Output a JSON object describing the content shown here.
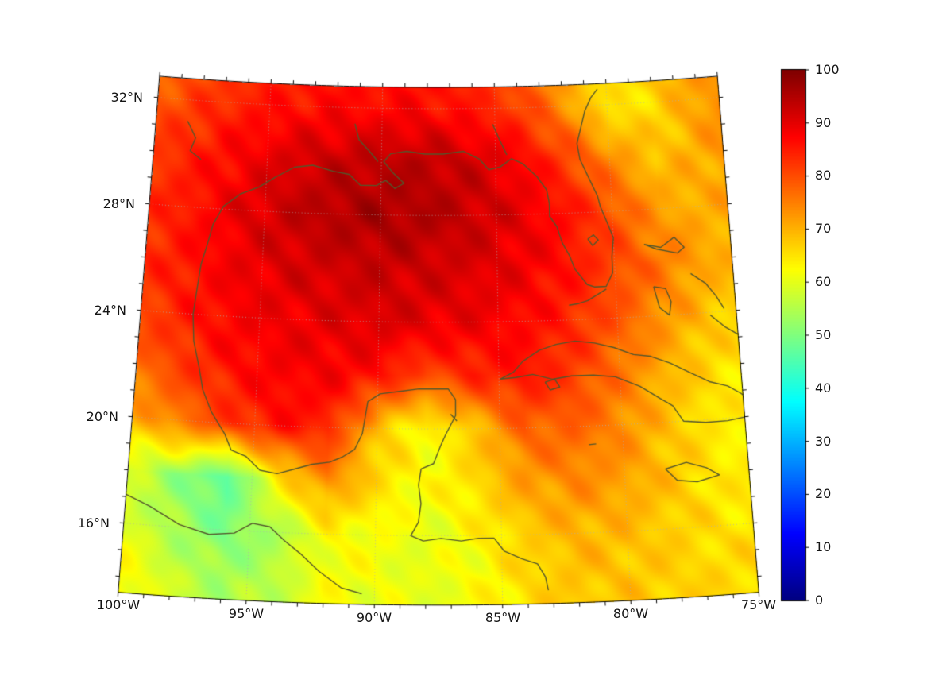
{
  "chart_data": {
    "type": "heatmap",
    "x_tick_lons": [
      -100,
      -95,
      -90,
      -85,
      -80,
      -75
    ],
    "x_tick_labels": [
      "100°W",
      "95°W",
      "90°W",
      "85°W",
      "80°W",
      "75°W"
    ],
    "y_tick_lats": [
      32,
      28,
      24,
      20,
      16
    ],
    "y_tick_labels": [
      "32°N",
      "28°N",
      "24°N",
      "20°N",
      "16°N"
    ],
    "lon_range": [
      -100,
      -75
    ],
    "lat_range": [
      13.4,
      32.8
    ],
    "minor_tick_step_deg": 1,
    "colorbar": {
      "min": 0,
      "max": 100,
      "colormap": "jet",
      "ticks": [
        0,
        10,
        20,
        30,
        40,
        50,
        60,
        70,
        80,
        90,
        100
      ],
      "tick_labels": [
        "0",
        "10",
        "20",
        "30",
        "40",
        "50",
        "60",
        "70",
        "80",
        "90",
        "100"
      ]
    },
    "colors": {
      "coastline": "#54562c",
      "gridline": "#b0b0b0",
      "border": "#000000",
      "background": "#ffffff"
    },
    "grid": {
      "lons": [
        -100,
        -98,
        -96,
        -94,
        -92,
        -90,
        -88,
        -86,
        -84,
        -82,
        -80,
        -78,
        -76,
        -74
      ],
      "lats": [
        34,
        32,
        30,
        28,
        26,
        24,
        22,
        20,
        18,
        16,
        14
      ],
      "values": [
        [
          76,
          79,
          82,
          84,
          85,
          85,
          85,
          83,
          78,
          70,
          66,
          70,
          74,
          76
        ],
        [
          79,
          82,
          85,
          86,
          87,
          87,
          87,
          85,
          82,
          74,
          64,
          66,
          72,
          75
        ],
        [
          82,
          85,
          88,
          91,
          93,
          94,
          94,
          92,
          88,
          82,
          74,
          68,
          71,
          74
        ],
        [
          83,
          86,
          90,
          93,
          95,
          96,
          95,
          93,
          90,
          86,
          80,
          72,
          70,
          72
        ],
        [
          83,
          86,
          89,
          91,
          92,
          93,
          92,
          91,
          89,
          86,
          81,
          76,
          71,
          69
        ],
        [
          81,
          85,
          88,
          89,
          90,
          91,
          90,
          89,
          87,
          84,
          79,
          73,
          68,
          66
        ],
        [
          77,
          82,
          86,
          88,
          88,
          86,
          80,
          84,
          86,
          82,
          76,
          70,
          66,
          64
        ],
        [
          70,
          76,
          82,
          86,
          84,
          68,
          62,
          68,
          78,
          78,
          74,
          68,
          64,
          63
        ],
        [
          58,
          52,
          46,
          64,
          74,
          66,
          62,
          66,
          72,
          74,
          72,
          68,
          64,
          64
        ],
        [
          60,
          54,
          50,
          54,
          62,
          62,
          60,
          63,
          67,
          70,
          69,
          67,
          65,
          66
        ],
        [
          64,
          58,
          54,
          56,
          62,
          61,
          60,
          62,
          66,
          68,
          68,
          67,
          66,
          67
        ]
      ]
    },
    "coastlines": [
      [
        [
          -97.6,
          25.9
        ],
        [
          -97.4,
          26.6
        ],
        [
          -97.2,
          27.4
        ],
        [
          -96.8,
          28.1
        ],
        [
          -96.1,
          28.6
        ],
        [
          -95.3,
          28.9
        ],
        [
          -94.6,
          29.3
        ],
        [
          -93.8,
          29.7
        ],
        [
          -93.0,
          29.8
        ],
        [
          -92.1,
          29.6
        ],
        [
          -91.4,
          29.5
        ],
        [
          -90.9,
          29.1
        ],
        [
          -90.2,
          29.1
        ],
        [
          -89.8,
          29.3
        ],
        [
          -89.4,
          29.0
        ],
        [
          -89.0,
          29.2
        ],
        [
          -89.5,
          29.6
        ],
        [
          -89.9,
          30.0
        ],
        [
          -89.6,
          30.3
        ],
        [
          -88.9,
          30.4
        ],
        [
          -88.1,
          30.3
        ],
        [
          -87.3,
          30.3
        ],
        [
          -86.4,
          30.4
        ],
        [
          -85.7,
          30.1
        ],
        [
          -85.3,
          29.7
        ],
        [
          -84.8,
          29.8
        ],
        [
          -84.3,
          30.1
        ],
        [
          -83.8,
          29.9
        ],
        [
          -83.2,
          29.4
        ],
        [
          -82.8,
          28.9
        ],
        [
          -82.7,
          28.4
        ],
        [
          -82.7,
          27.9
        ],
        [
          -82.4,
          27.5
        ],
        [
          -82.2,
          26.9
        ],
        [
          -81.9,
          26.4
        ],
        [
          -81.7,
          25.9
        ],
        [
          -81.2,
          25.3
        ],
        [
          -80.9,
          25.2
        ],
        [
          -80.4,
          25.2
        ],
        [
          -80.1,
          25.7
        ],
        [
          -80.1,
          26.3
        ],
        [
          -80.0,
          27.0
        ],
        [
          -80.2,
          27.5
        ],
        [
          -80.5,
          28.2
        ],
        [
          -80.6,
          28.6
        ],
        [
          -81.0,
          29.4
        ],
        [
          -81.3,
          30.0
        ],
        [
          -81.4,
          30.6
        ],
        [
          -81.2,
          31.2
        ],
        [
          -81.0,
          31.8
        ],
        [
          -80.7,
          32.3
        ],
        [
          -80.4,
          32.6
        ]
      ],
      [
        [
          -97.6,
          25.9
        ],
        [
          -97.7,
          25.0
        ],
        [
          -97.8,
          24.0
        ],
        [
          -97.7,
          23.0
        ],
        [
          -97.4,
          22.0
        ],
        [
          -97.2,
          21.2
        ],
        [
          -96.8,
          20.4
        ],
        [
          -96.2,
          19.6
        ],
        [
          -95.9,
          19.0
        ],
        [
          -95.3,
          18.8
        ],
        [
          -94.7,
          18.3
        ],
        [
          -94.0,
          18.2
        ],
        [
          -93.3,
          18.4
        ],
        [
          -92.6,
          18.6
        ],
        [
          -91.9,
          18.7
        ],
        [
          -91.4,
          18.9
        ],
        [
          -90.9,
          19.2
        ],
        [
          -90.6,
          19.8
        ],
        [
          -90.5,
          20.4
        ],
        [
          -90.4,
          21.0
        ],
        [
          -89.9,
          21.3
        ],
        [
          -89.1,
          21.4
        ],
        [
          -88.3,
          21.5
        ],
        [
          -87.7,
          21.5
        ],
        [
          -87.1,
          21.5
        ],
        [
          -86.8,
          21.1
        ],
        [
          -86.8,
          20.5
        ],
        [
          -87.2,
          19.8
        ],
        [
          -87.4,
          19.4
        ],
        [
          -87.7,
          18.7
        ],
        [
          -88.2,
          18.5
        ],
        [
          -88.3,
          17.9
        ],
        [
          -88.2,
          17.2
        ],
        [
          -88.3,
          16.5
        ],
        [
          -88.6,
          16.0
        ],
        [
          -88.1,
          15.8
        ],
        [
          -87.4,
          15.9
        ],
        [
          -86.6,
          15.8
        ],
        [
          -85.9,
          15.9
        ],
        [
          -85.3,
          15.9
        ],
        [
          -84.9,
          15.4
        ],
        [
          -84.2,
          15.1
        ],
        [
          -83.6,
          14.9
        ],
        [
          -83.3,
          14.4
        ],
        [
          -83.2,
          13.9
        ]
      ],
      [
        [
          -100.3,
          17.2
        ],
        [
          -99.0,
          16.7
        ],
        [
          -97.8,
          16.1
        ],
        [
          -96.6,
          15.8
        ],
        [
          -95.6,
          15.9
        ],
        [
          -94.9,
          16.3
        ],
        [
          -94.2,
          16.2
        ],
        [
          -93.6,
          15.7
        ],
        [
          -92.9,
          15.2
        ],
        [
          -92.2,
          14.6
        ],
        [
          -91.3,
          14.0
        ],
        [
          -90.5,
          13.8
        ]
      ],
      [
        [
          -84.95,
          21.85
        ],
        [
          -84.4,
          22.1
        ],
        [
          -84.0,
          22.5
        ],
        [
          -83.3,
          22.9
        ],
        [
          -82.6,
          23.1
        ],
        [
          -81.8,
          23.2
        ],
        [
          -81.0,
          23.1
        ],
        [
          -80.2,
          22.9
        ],
        [
          -79.4,
          22.6
        ],
        [
          -78.7,
          22.5
        ],
        [
          -77.9,
          22.2
        ],
        [
          -77.1,
          21.8
        ],
        [
          -76.3,
          21.4
        ],
        [
          -75.6,
          21.2
        ],
        [
          -75.1,
          20.9
        ],
        [
          -74.3,
          20.3
        ],
        [
          -74.9,
          20.0
        ],
        [
          -75.7,
          19.9
        ],
        [
          -76.6,
          19.9
        ],
        [
          -77.5,
          20.0
        ],
        [
          -77.9,
          20.6
        ],
        [
          -78.4,
          20.9
        ],
        [
          -79.2,
          21.4
        ],
        [
          -80.2,
          21.8
        ],
        [
          -81.1,
          21.9
        ],
        [
          -82.0,
          21.9
        ],
        [
          -82.8,
          21.8
        ],
        [
          -83.6,
          22.0
        ],
        [
          -84.3,
          21.9
        ],
        [
          -84.95,
          21.85
        ]
      ],
      [
        [
          -83.1,
          21.7
        ],
        [
          -82.7,
          21.8
        ],
        [
          -82.5,
          21.5
        ],
        [
          -82.9,
          21.4
        ],
        [
          -83.1,
          21.7
        ]
      ],
      [
        [
          -78.35,
          18.25
        ],
        [
          -77.5,
          18.45
        ],
        [
          -76.7,
          18.2
        ],
        [
          -76.2,
          17.9
        ],
        [
          -77.1,
          17.7
        ],
        [
          -77.9,
          17.8
        ],
        [
          -78.35,
          18.25
        ]
      ],
      [
        [
          -74.0,
          19.9
        ],
        [
          -74.5,
          19.75
        ],
        [
          -74.3,
          19.3
        ],
        [
          -74.0,
          19.1
        ]
      ],
      [
        [
          -74.0,
          18.35
        ],
        [
          -74.45,
          18.4
        ],
        [
          -74.0,
          18.65
        ]
      ],
      [
        [
          -78.7,
          26.7
        ],
        [
          -78.0,
          26.55
        ],
        [
          -77.4,
          26.9
        ],
        [
          -77.0,
          26.5
        ],
        [
          -77.3,
          26.3
        ],
        [
          -78.2,
          26.5
        ],
        [
          -78.7,
          26.7
        ]
      ],
      [
        [
          -78.4,
          25.1
        ],
        [
          -77.9,
          25.0
        ],
        [
          -77.7,
          24.5
        ],
        [
          -77.8,
          24.0
        ],
        [
          -78.2,
          24.3
        ],
        [
          -78.4,
          25.1
        ]
      ],
      [
        [
          -76.8,
          25.5
        ],
        [
          -76.2,
          25.1
        ],
        [
          -75.8,
          24.6
        ],
        [
          -75.5,
          24.1
        ]
      ],
      [
        [
          -76.1,
          23.9
        ],
        [
          -75.5,
          23.4
        ],
        [
          -75.0,
          23.1
        ]
      ],
      [
        [
          -80.4,
          25.1
        ],
        [
          -80.8,
          24.9
        ],
        [
          -81.2,
          24.7
        ],
        [
          -81.6,
          24.6
        ],
        [
          -82.0,
          24.55
        ]
      ],
      [
        [
          -81.1,
          27.0
        ],
        [
          -80.85,
          27.15
        ],
        [
          -80.65,
          26.95
        ],
        [
          -80.9,
          26.75
        ],
        [
          -81.1,
          27.0
        ]
      ],
      [
        [
          -87.0,
          20.55
        ],
        [
          -86.75,
          20.3
        ]
      ],
      [
        [
          -81.4,
          19.3
        ],
        [
          -81.1,
          19.32
        ]
      ],
      [
        [
          -98.6,
          31.2
        ],
        [
          -98.2,
          30.6
        ],
        [
          -98.4,
          30.1
        ],
        [
          -97.9,
          29.8
        ]
      ],
      [
        [
          -91.2,
          31.4
        ],
        [
          -91.0,
          30.8
        ],
        [
          -90.5,
          30.35
        ],
        [
          -90.15,
          30.0
        ]
      ],
      [
        [
          -85.1,
          31.4
        ],
        [
          -84.8,
          30.8
        ],
        [
          -84.5,
          30.25
        ]
      ]
    ]
  }
}
